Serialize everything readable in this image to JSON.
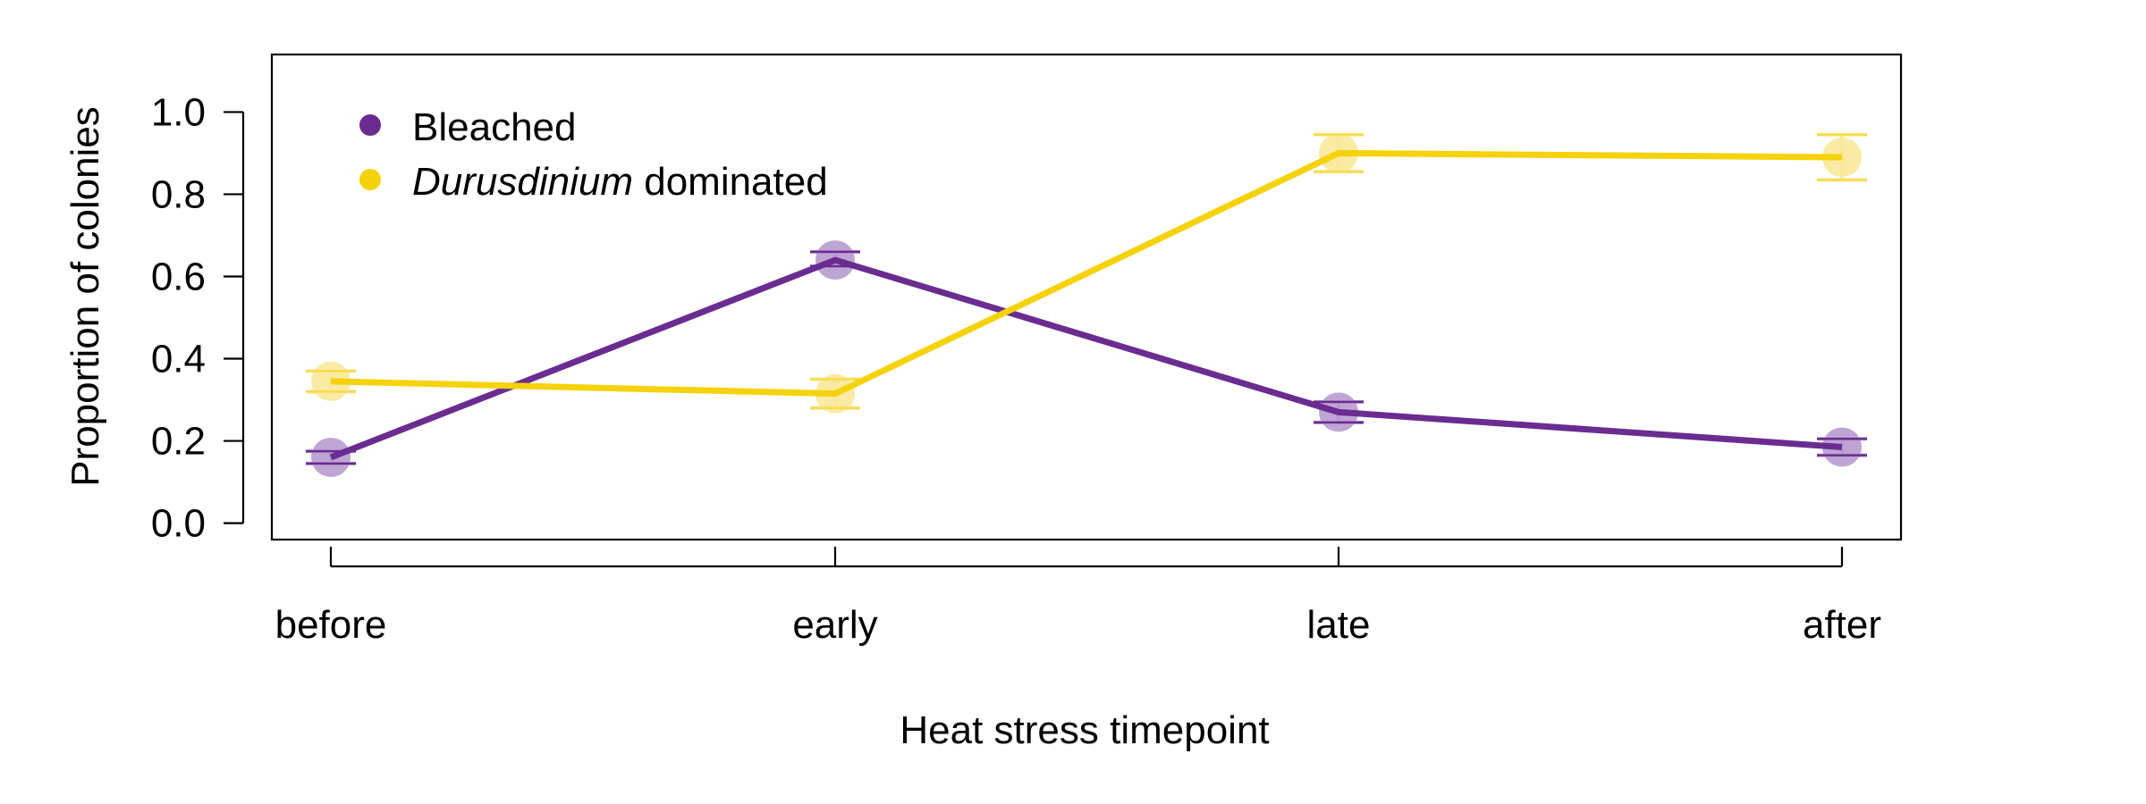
{
  "chart_data": {
    "type": "line",
    "title": "",
    "xlabel": "Heat stress timepoint",
    "ylabel": "Proportion of colonies",
    "categories": [
      "before",
      "early",
      "late",
      "after"
    ],
    "ylim": [
      -0.04,
      1.14
    ],
    "yticks": [
      "0.0",
      "0.2",
      "0.4",
      "0.6",
      "0.8",
      "1.0"
    ],
    "grid": false,
    "legend_position": "top-left",
    "series": [
      {
        "name": "Bleached",
        "values": [
          0.16,
          0.64,
          0.27,
          0.185
        ],
        "lower": [
          0.145,
          0.625,
          0.245,
          0.165
        ],
        "upper": [
          0.175,
          0.66,
          0.295,
          0.205
        ],
        "color": "#6A2C91",
        "point_color": "#B89BCE"
      },
      {
        "name": "dominated",
        "name_italic": "Durusdinium",
        "values": [
          0.345,
          0.315,
          0.9,
          0.89
        ],
        "lower": [
          0.32,
          0.28,
          0.855,
          0.835
        ],
        "upper": [
          0.37,
          0.35,
          0.945,
          0.945
        ],
        "color": "#F5D20A",
        "point_color": "#F8E89A"
      }
    ]
  }
}
